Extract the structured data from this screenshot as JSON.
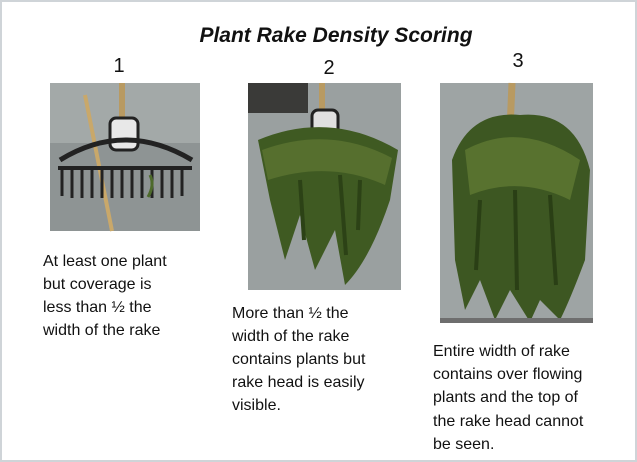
{
  "title": "Plant Rake Density Scoring",
  "panels": [
    {
      "number": "1",
      "description": [
        "At least one plant",
        "but coverage is",
        "less than ½ the",
        "width of the rake"
      ]
    },
    {
      "number": "2",
      "description": [
        "More than ½ the",
        "width of the rake",
        "contains plants but",
        "rake head is easily",
        "visible."
      ]
    },
    {
      "number": "3",
      "description": [
        "Entire width of rake",
        "contains over flowing",
        "plants and the top of",
        "the rake head cannot",
        "be seen."
      ]
    }
  ]
}
